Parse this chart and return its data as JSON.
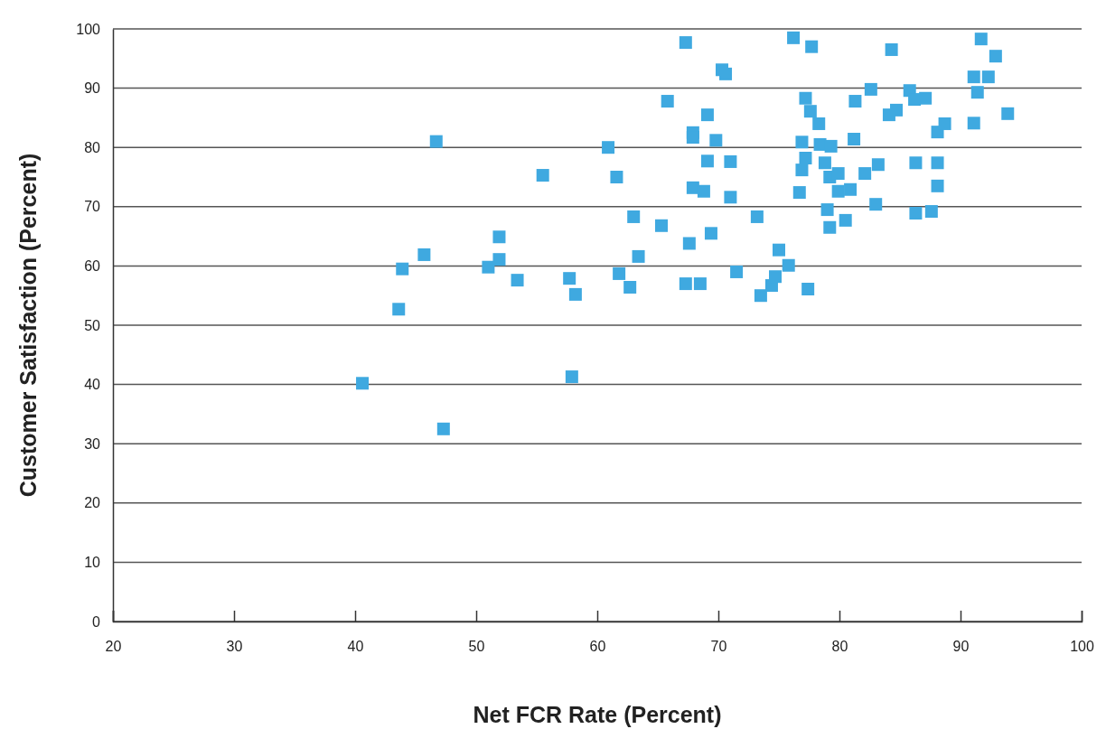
{
  "chart_data": {
    "type": "scatter",
    "xlabel": "Net FCR Rate (Percent)",
    "ylabel": "Customer Satisfaction (Percent)",
    "xlim": [
      20,
      100
    ],
    "xticks": [
      20,
      30,
      40,
      50,
      60,
      70,
      80,
      90,
      100
    ],
    "ylim": [
      0,
      100
    ],
    "yticks": [
      0,
      10,
      20,
      30,
      40,
      50,
      60,
      70,
      80,
      90,
      100
    ],
    "grid": "y",
    "marker": "square",
    "series": [
      {
        "color": "#3fa9e0",
        "x": [
          40.6,
          47.3,
          57.9,
          43.6,
          43.9,
          45.7,
          46.7,
          51.0,
          51.9,
          51.9,
          53.4,
          55.5,
          57.7,
          58.2,
          60.9,
          61.6,
          61.8,
          62.7,
          63.0,
          63.4,
          65.3,
          65.8,
          67.3,
          67.3,
          67.6,
          67.9,
          67.9,
          67.9,
          68.8,
          68.5,
          69.1,
          69.1,
          69.8,
          69.4,
          70.3,
          70.6,
          71.0,
          71.0,
          71.5,
          73.2,
          73.5,
          74.4,
          74.7,
          75.0,
          75.8,
          76.2,
          77.7,
          76.9,
          76.9,
          77.2,
          76.7,
          77.2,
          77.6,
          78.3,
          78.4,
          79.3,
          78.8,
          79.2,
          79.0,
          79.2,
          79.9,
          79.9,
          80.9,
          80.5,
          77.4,
          81.3,
          81.2,
          82.6,
          82.1,
          83.2,
          83.0,
          84.3,
          84.1,
          84.7,
          85.8,
          86.2,
          87.1,
          86.3,
          86.3,
          87.6,
          88.1,
          88.1,
          88.1,
          88.7,
          91.1,
          91.1,
          91.4,
          91.7,
          92.3,
          92.9,
          93.9
        ],
        "values": [
          40.2,
          32.5,
          41.3,
          52.7,
          59.5,
          61.9,
          81.0,
          59.8,
          64.9,
          61.1,
          57.6,
          75.3,
          57.9,
          55.2,
          80.0,
          75.0,
          58.7,
          56.4,
          68.3,
          61.6,
          66.8,
          87.8,
          97.7,
          57.0,
          63.8,
          82.5,
          81.7,
          73.2,
          72.6,
          57.0,
          85.5,
          77.7,
          81.2,
          65.5,
          93.1,
          92.4,
          77.6,
          71.6,
          59.0,
          68.3,
          55.0,
          56.7,
          58.2,
          62.7,
          60.1,
          98.5,
          97.0,
          80.9,
          76.2,
          78.2,
          72.4,
          88.3,
          86.1,
          84.0,
          80.5,
          80.2,
          77.4,
          75.0,
          69.5,
          66.5,
          75.6,
          72.6,
          72.9,
          67.7,
          56.1,
          87.8,
          81.4,
          89.8,
          75.6,
          77.1,
          70.4,
          96.5,
          85.5,
          86.3,
          89.6,
          88.1,
          88.3,
          77.4,
          68.9,
          69.2,
          82.6,
          77.4,
          73.5,
          84.0,
          91.9,
          84.1,
          89.3,
          98.3,
          91.9,
          95.4,
          85.7
        ]
      }
    ]
  }
}
